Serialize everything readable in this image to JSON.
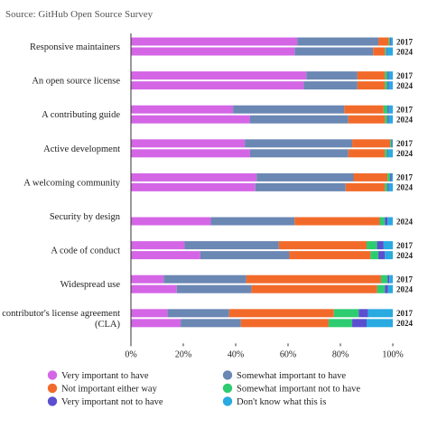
{
  "source": "Source: GitHub Open Source Survey",
  "chart_data": {
    "type": "bar",
    "orientation": "horizontal",
    "stacked": true,
    "normalized": true,
    "categories": [
      "Responsive maintainers",
      "An open source license",
      "A contributing guide",
      "Active development",
      "A welcoming community",
      "Security by design",
      "A code of conduct",
      "Widespread use",
      "A contributor's license agreement (CLA)"
    ],
    "category_lines": [
      [
        "Responsive maintainers"
      ],
      [
        "An open source license"
      ],
      [
        "A contributing guide"
      ],
      [
        "Active development"
      ],
      [
        "A welcoming community"
      ],
      [
        "Security by design"
      ],
      [
        "A code of conduct"
      ],
      [
        "Widespread use"
      ],
      [
        "A contributor's license agreement",
        "(CLA)"
      ]
    ],
    "years": [
      "2017",
      "2024"
    ],
    "series": [
      {
        "name": "Very important to have",
        "color": "#d466e6",
        "values_2017": [
          63.5,
          67,
          39,
          43.5,
          48,
          null,
          20.5,
          12.5,
          14
        ],
        "values_2024": [
          62.5,
          66,
          45.5,
          45.5,
          47.5,
          30.5,
          26.5,
          17.5,
          19
        ]
      },
      {
        "name": "Somewhat important to have",
        "color": "#6b87b3",
        "values_2017": [
          31,
          19.5,
          42.5,
          41,
          37,
          null,
          36,
          31.5,
          23.5
        ],
        "values_2024": [
          30,
          20.5,
          37.5,
          37.5,
          34.5,
          32,
          34,
          28.5,
          23
        ]
      },
      {
        "name": "Not important either way",
        "color": "#f26a2a",
        "values_2017": [
          4,
          10.5,
          15,
          14.5,
          13,
          null,
          33.5,
          51.5,
          40
        ],
        "values_2024": [
          4.5,
          10.5,
          14,
          14,
          15,
          32.5,
          31,
          48,
          33.5
        ]
      },
      {
        "name": "Somewhat important not to have",
        "color": "#2ecc71",
        "values_2017": [
          0.5,
          1,
          1.5,
          0.5,
          1,
          null,
          4,
          2.5,
          9.5
        ],
        "values_2024": [
          0.5,
          1,
          1,
          1,
          1,
          2,
          3,
          3,
          9
        ]
      },
      {
        "name": "Very important not to have",
        "color": "#5a4fcf",
        "values_2017": [
          0.3,
          0.5,
          0.5,
          0.3,
          0.5,
          null,
          2.5,
          0.7,
          3.5
        ],
        "values_2024": [
          0.3,
          0.5,
          0.5,
          0.3,
          0.5,
          1,
          2.5,
          1.2,
          5.5
        ]
      },
      {
        "name": "Don't know what this is",
        "color": "#29aae1",
        "values_2017": [
          0.7,
          1.5,
          1.5,
          0.2,
          0.5,
          null,
          3.5,
          1.3,
          9.5
        ],
        "values_2024": [
          2.2,
          1.5,
          1.5,
          1.7,
          1.5,
          2,
          3,
          1.8,
          10
        ]
      }
    ],
    "xlim": [
      0,
      100
    ],
    "x_ticks": [
      "0%",
      "20%",
      "40%",
      "60%",
      "80%",
      "100%"
    ],
    "legend_position": "bottom",
    "grid": false
  }
}
